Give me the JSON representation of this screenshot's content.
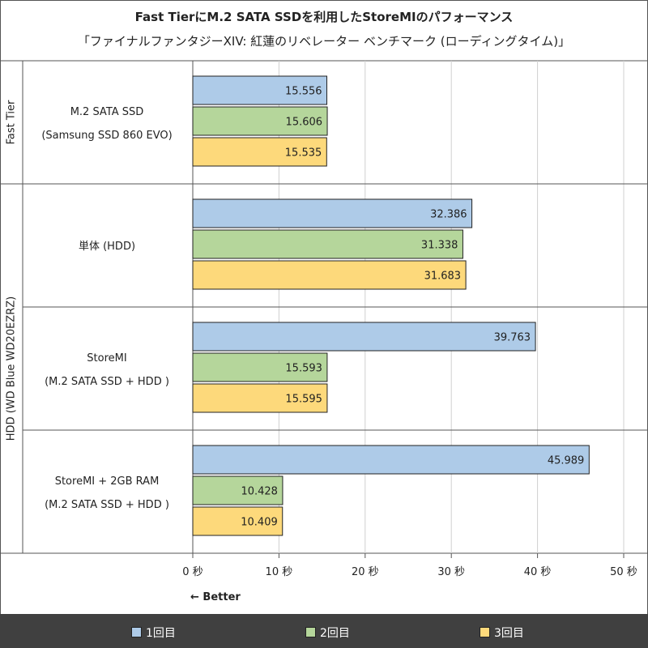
{
  "title": "Fast TierにM.2 SATA SSDを利用したStoreMIのパフォーマンス",
  "subtitle": "「ファイナルファンタジーXIV: 紅蓮のリベレーター ベンチマーク (ローディングタイム)」",
  "better_label": "← Better",
  "colors": {
    "run1": "#aecbe8",
    "run2": "#b5d69b",
    "run3": "#fdd97b",
    "bar_stroke": "#222222",
    "grid": "#d0d0d0",
    "legend_bg": "#404040"
  },
  "chart_data": {
    "type": "bar",
    "orientation": "horizontal",
    "title": "Fast TierにM.2 SATA SSDを利用したStoreMIのパフォーマンス",
    "subtitle": "「ファイナルファンタジーXIV: 紅蓮のリベレーター ベンチマーク (ローディングタイム)」",
    "xlim": [
      0,
      50
    ],
    "ticks": [
      0,
      10,
      20,
      30,
      40,
      50
    ],
    "tick_labels": [
      "0 秒",
      "10 秒",
      "20 秒",
      "30 秒",
      "40 秒",
      "50 秒"
    ],
    "groups": [
      {
        "label": "Fast Tier",
        "categories": [
          0
        ]
      },
      {
        "label": "HDD (WD Blue WD20EZRZ)",
        "categories": [
          1,
          2,
          3
        ]
      }
    ],
    "categories": [
      {
        "line1": "M.2 SATA SSD",
        "line2": "(Samsung SSD 860 EVO)"
      },
      {
        "line1": "単体 (HDD)",
        "line2": ""
      },
      {
        "line1": "StoreMI",
        "line2": "(M.2 SATA SSD + HDD )"
      },
      {
        "line1": "StoreMI + 2GB RAM",
        "line2": "(M.2 SATA SSD + HDD )"
      }
    ],
    "series": [
      {
        "name": "1回目",
        "values": [
          15.556,
          32.386,
          39.763,
          45.989
        ],
        "labels": [
          "15.556",
          "32.386",
          "39.763",
          "45.989"
        ]
      },
      {
        "name": "2回目",
        "values": [
          15.606,
          31.338,
          15.593,
          10.428
        ],
        "labels": [
          "15.606",
          "31.338",
          "15.593",
          "10.428"
        ]
      },
      {
        "name": "3回目",
        "values": [
          15.535,
          31.683,
          15.595,
          10.409
        ],
        "labels": [
          "15.535",
          "31.683",
          "15.595",
          "10.409"
        ]
      }
    ]
  }
}
